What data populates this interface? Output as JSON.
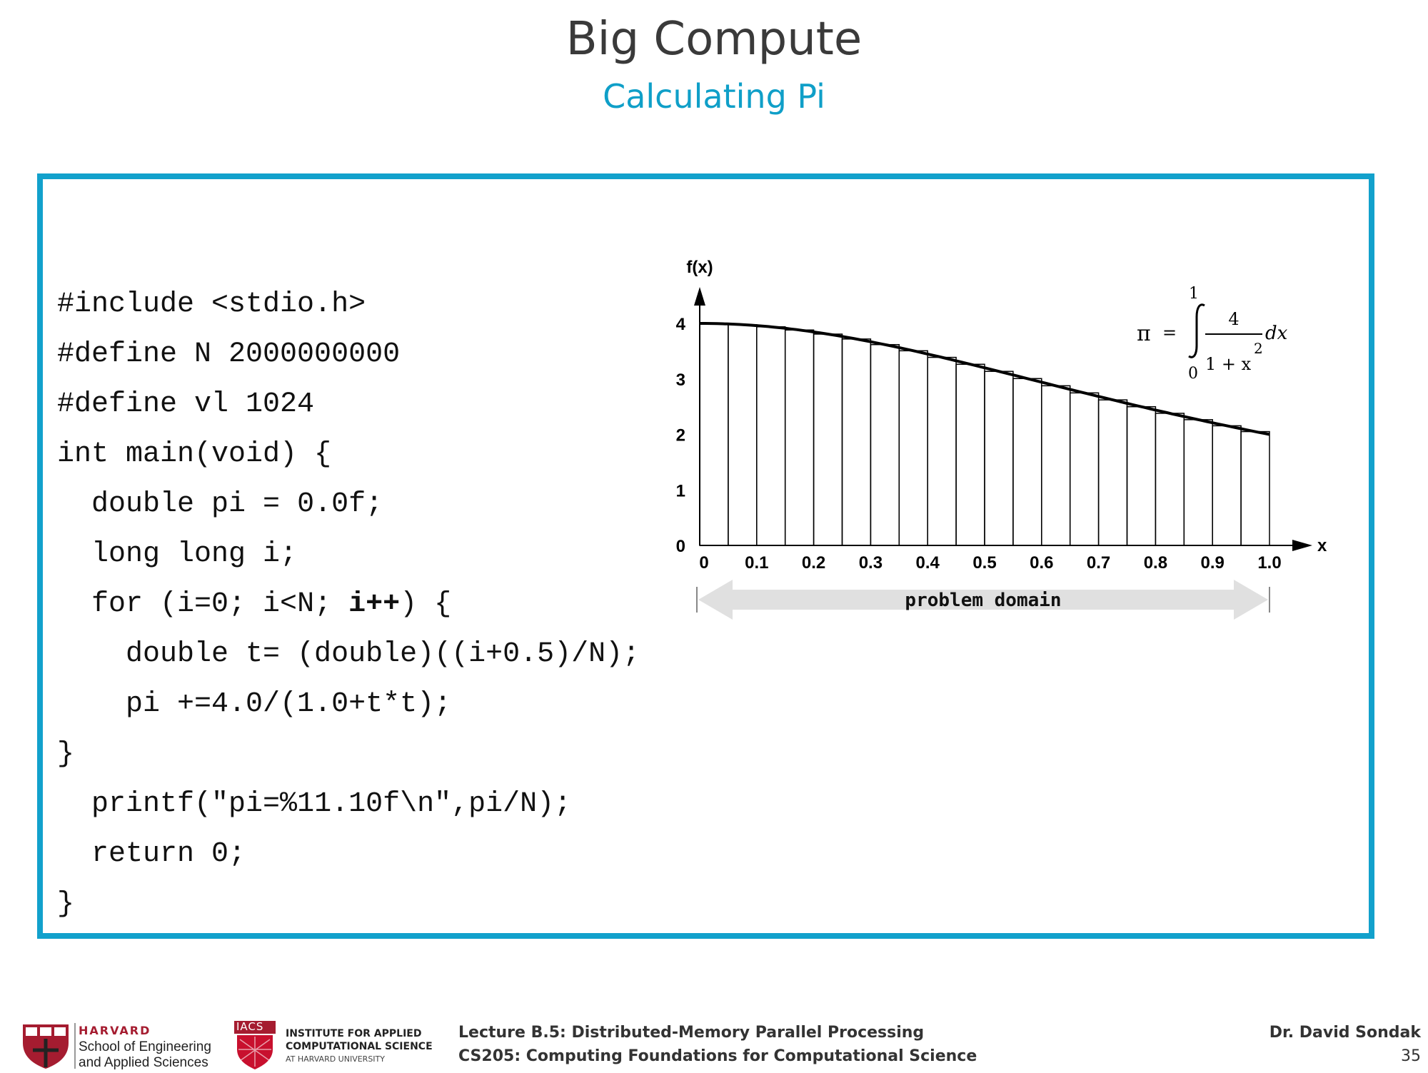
{
  "slide": {
    "title": "Big Compute",
    "subtitle": "Calculating Pi"
  },
  "code": {
    "lines": [
      {
        "indent": "",
        "text": "#include <stdio.h>",
        "bold": ""
      },
      {
        "indent": "",
        "text": "#define N 2000000000",
        "bold": ""
      },
      {
        "indent": "",
        "text": "#define vl 1024",
        "bold": ""
      },
      {
        "indent": "",
        "text": "int main(void) {",
        "bold": ""
      },
      {
        "indent": "  ",
        "text": "double pi = 0.0f;",
        "bold": ""
      },
      {
        "indent": "  ",
        "text": "long long i;",
        "bold": ""
      },
      {
        "indent": "  ",
        "text": "for (i=0; i<N; ",
        "bold": "i++",
        "after": ") {"
      },
      {
        "indent": "    ",
        "text": "double t= (double)((i+0.5)/N);",
        "bold": ""
      },
      {
        "indent": "    ",
        "text": "pi +=4.0/(1.0+t*t);",
        "bold": ""
      },
      {
        "indent": "",
        "text": "}",
        "bold": ""
      },
      {
        "indent": "  ",
        "text": "printf(\"pi=%11.10f\\n\",pi/N);",
        "bold": ""
      },
      {
        "indent": "  ",
        "text": "return 0;",
        "bold": ""
      },
      {
        "indent": "",
        "text": "}",
        "bold": ""
      }
    ]
  },
  "chart_data": {
    "type": "bar",
    "x_start": 0,
    "x_end": 1.0,
    "bin_count": 20,
    "function": "4/(1+x^2)",
    "xlabel": "x",
    "ylabel": "f(x)",
    "xticks": [
      "0",
      "0.1",
      "0.2",
      "0.3",
      "0.4",
      "0.5",
      "0.6",
      "0.7",
      "0.8",
      "0.9",
      "1.0"
    ],
    "yticks": [
      "0",
      "1",
      "2",
      "3",
      "4"
    ],
    "xlim": [
      0,
      1.0
    ],
    "ylim": [
      0,
      4
    ],
    "domain_label": "problem domain",
    "formula": {
      "lhs": "π",
      "eq": "=",
      "upper": "1",
      "lower": "0",
      "numerator": "4",
      "denominator": "1 + x",
      "exponent": "2",
      "dx": "dx"
    }
  },
  "footer": {
    "harvard_label": "HARVARD",
    "seas_line1": "School of Engineering",
    "seas_line2": "and Applied Sciences",
    "iacs_badge": "IACS",
    "iacs_line1": "INSTITUTE FOR APPLIED",
    "iacs_line2": "COMPUTATIONAL SCIENCE",
    "iacs_line3": "AT HARVARD UNIVERSITY",
    "lecture": "Lecture B.5: Distributed-Memory Parallel Processing",
    "course": "CS205: Computing Foundations for Computational Science",
    "author": "Dr. David Sondak",
    "page": "35"
  },
  "colors": {
    "accent": "#12a1cc",
    "harvard_red": "#a51c30"
  }
}
